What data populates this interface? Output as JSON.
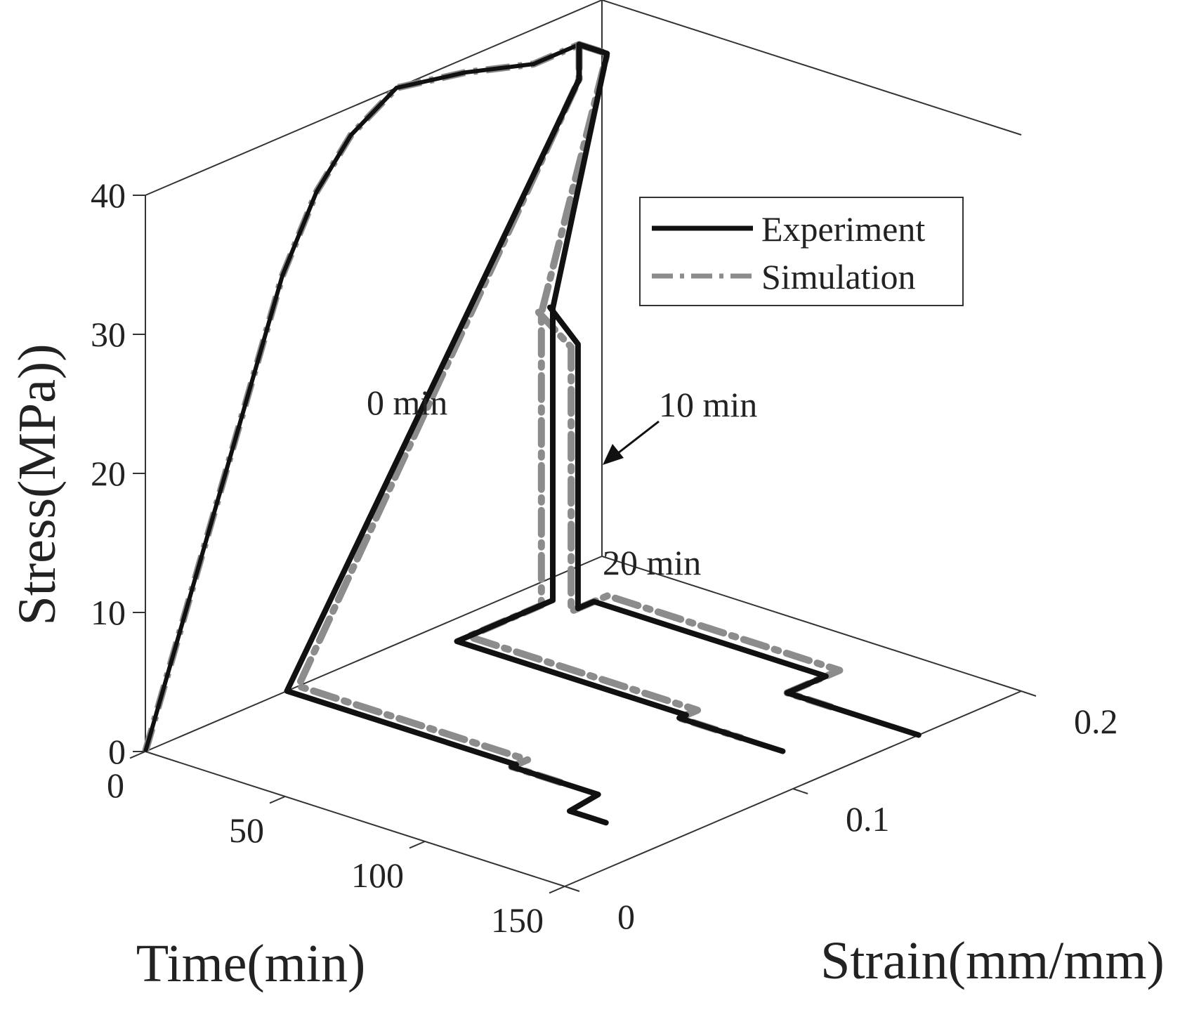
{
  "chart_data": {
    "type": "line",
    "projection": "3d",
    "xlabel": "Time(min)",
    "ylabel": "Strain(mm/mm)",
    "zlabel": "Stress(MPa))",
    "xlim": [
      0,
      150
    ],
    "ylim": [
      0,
      0.2
    ],
    "zlim": [
      0,
      40
    ],
    "xticks": [
      0,
      50,
      100,
      150
    ],
    "xtick_labels": [
      "0",
      "50",
      "100",
      "150"
    ],
    "yticks": [
      0,
      0.1,
      0.2
    ],
    "ytick_labels": [
      "0",
      "0.1",
      "0.2"
    ],
    "zticks": [
      0,
      10,
      20,
      30,
      40
    ],
    "ztick_labels": [
      "0",
      "10",
      "20",
      "30",
      "40"
    ],
    "grid": false,
    "box": true,
    "legend_position": "top-right",
    "legend": [
      "Experiment",
      "Simulation"
    ],
    "series_styles": {
      "Experiment": {
        "color": "#111111",
        "dash": "solid"
      },
      "Simulation": {
        "color": "#8c8c8c",
        "dash": "dash-dot"
      }
    },
    "loading_curve": {
      "time": [
        0,
        0,
        0,
        0,
        0,
        0,
        0,
        0,
        0,
        0
      ],
      "strain": [
        0,
        0.02,
        0.04,
        0.06,
        0.075,
        0.09,
        0.11,
        0.14,
        0.17,
        0.19
      ],
      "stress": [
        0,
        10,
        20,
        30,
        35,
        38,
        40,
        39,
        37.5,
        37.5
      ]
    },
    "annotations": [
      "0 min",
      "10 min",
      "20 min"
    ],
    "series": [
      {
        "name": "Experiment",
        "hold": "0 min",
        "time": [
          0,
          0,
          0,
          82,
          82,
          113,
          115,
          122,
          128
        ],
        "strain": [
          0.19,
          0.19,
          0.062,
          0.062,
          0.06,
          0.06,
          0.045,
          0.045,
          0.045
        ],
        "stress": [
          37.5,
          35,
          0,
          0,
          0,
          0,
          0,
          0,
          0
        ]
      },
      {
        "name": "Simulation",
        "hold": "0 min",
        "time": [
          0,
          0,
          0,
          82,
          82,
          100
        ],
        "strain": [
          0.19,
          0.19,
          0.067,
          0.067,
          0.06,
          0.06
        ],
        "stress": [
          37.5,
          35,
          0,
          0,
          0,
          0
        ]
      },
      {
        "name": "Experiment",
        "hold": "10 min",
        "time": [
          0,
          10,
          11,
          11,
          11,
          93,
          93,
          122,
          130
        ],
        "strain": [
          0.19,
          0.19,
          0.165,
          0.165,
          0.123,
          0.123,
          0.12,
          0.12,
          0.12
        ],
        "stress": [
          37.5,
          37.5,
          21,
          0,
          0,
          0,
          0,
          0,
          0
        ]
      },
      {
        "name": "Simulation",
        "hold": "10 min",
        "time": [
          0,
          10,
          11,
          11,
          11,
          93,
          93,
          115
        ],
        "strain": [
          0.19,
          0.19,
          0.16,
          0.16,
          0.128,
          0.128,
          0.12,
          0.12
        ],
        "stress": [
          37.5,
          37.5,
          21,
          0,
          0,
          0,
          0,
          0
        ]
      },
      {
        "name": "Experiment",
        "hold": "20 min",
        "time": [
          10,
          20,
          20,
          20,
          103,
          103,
          150
        ],
        "strain": [
          0.165,
          0.165,
          0.165,
          0.172,
          0.172,
          0.155,
          0.155
        ],
        "stress": [
          21,
          19,
          0,
          0,
          0,
          0,
          0
        ]
      },
      {
        "name": "Simulation",
        "hold": "20 min",
        "time": [
          10,
          20,
          20,
          20,
          103,
          103,
          120
        ],
        "strain": [
          0.16,
          0.162,
          0.162,
          0.178,
          0.178,
          0.155,
          0.155
        ],
        "stress": [
          21,
          19,
          0,
          0,
          0,
          0,
          0
        ]
      }
    ]
  }
}
